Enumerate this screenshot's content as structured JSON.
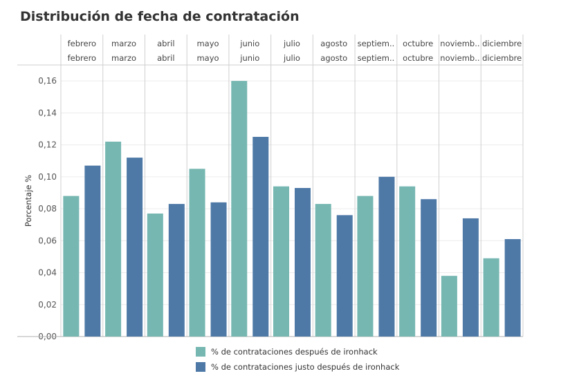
{
  "chart_data": {
    "type": "bar",
    "title": "Distribución de fecha de contratación",
    "ylabel": "Porcentaje %",
    "ylim": [
      0,
      0.17
    ],
    "yticks": [
      "0,00",
      "0,02",
      "0,04",
      "0,06",
      "0,08",
      "0,10",
      "0,12",
      "0,14",
      "0,16"
    ],
    "yticks_values": [
      0,
      0.02,
      0.04,
      0.06,
      0.08,
      0.1,
      0.12,
      0.14,
      0.16
    ],
    "header_row1": [
      "febrero",
      "marzo",
      "abril",
      "mayo",
      "junio",
      "julio",
      "agosto",
      "septiem..",
      "octubre",
      "noviemb..",
      "diciembre"
    ],
    "header_row2": [
      "febrero",
      "marzo",
      "abril",
      "mayo",
      "junio",
      "julio",
      "agosto",
      "septiem..",
      "octubre",
      "noviemb..",
      "diciembre"
    ],
    "categories": [
      "febrero",
      "marzo",
      "abril",
      "mayo",
      "junio",
      "julio",
      "agosto",
      "septiembre",
      "octubre",
      "noviembre",
      "diciembre"
    ],
    "series": [
      {
        "name": "% de contrataciones después de ironhack",
        "color": "#76b7b2",
        "values": [
          0.088,
          0.122,
          0.077,
          0.105,
          0.16,
          0.094,
          0.083,
          0.088,
          0.094,
          0.038,
          0.049
        ]
      },
      {
        "name": "% de contrataciones justo después de ironhack",
        "color": "#4e79a7",
        "values": [
          0.107,
          0.112,
          0.083,
          0.084,
          0.125,
          0.093,
          0.076,
          0.1,
          0.086,
          0.074,
          0.061
        ]
      }
    ],
    "grid": true,
    "legend_position": "bottom"
  }
}
